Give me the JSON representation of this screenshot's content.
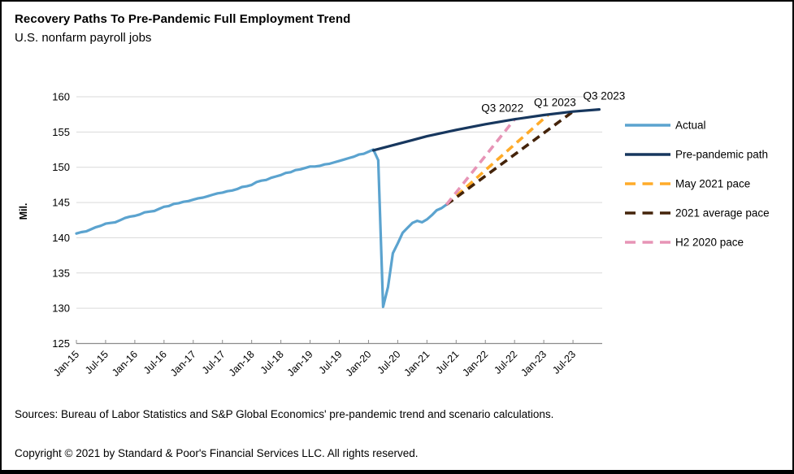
{
  "page": {
    "title": "Recovery Paths To Pre-Pandemic Full Employment Trend",
    "subtitle": "U.S. nonfarm payroll jobs"
  },
  "footer": {
    "sources": "Sources: Bureau of Labor Statistics and S&P Global Economics' pre-pandemic trend and scenario calculations.",
    "copyright": "Copyright © 2021 by Standard & Poor's Financial Services LLC. All rights reserved."
  },
  "chart_data": {
    "type": "line",
    "title": "Recovery Paths To Pre-Pandemic Full Employment Trend",
    "subtitle": "U.S. nonfarm payroll jobs",
    "ylabel": "Mil.",
    "ylim": [
      125,
      160
    ],
    "yticks": [
      125,
      130,
      135,
      140,
      145,
      150,
      155,
      160
    ],
    "xticklabels": [
      "Jan-15",
      "Jul-15",
      "Jan-16",
      "Jul-16",
      "Jan-17",
      "Jul-17",
      "Jan-18",
      "Jul-18",
      "Jan-19",
      "Jul-19",
      "Jan-20",
      "Jul-20",
      "Jan-21",
      "Jul-21",
      "Jan-22",
      "Jul-22",
      "Jan-23",
      "Jul-23"
    ],
    "x_months_domain": [
      0,
      108
    ],
    "x_month_zero": "Jan-15",
    "grid": "horizontal",
    "legend_position": "right",
    "axis_color": "#8C8C8C",
    "grid_color": "#D9D9D9",
    "series": [
      {
        "name": "Actual",
        "color": "#5BA3CF",
        "style": "solid",
        "start_month": 0,
        "monthly_values": [
          140.6,
          140.8,
          140.9,
          141.2,
          141.5,
          141.7,
          142.0,
          142.1,
          142.2,
          142.5,
          142.8,
          143.0,
          143.1,
          143.3,
          143.6,
          143.7,
          143.8,
          144.1,
          144.4,
          144.5,
          144.8,
          144.9,
          145.1,
          145.2,
          145.4,
          145.6,
          145.7,
          145.9,
          146.1,
          146.3,
          146.4,
          146.6,
          146.7,
          146.9,
          147.2,
          147.3,
          147.5,
          147.9,
          148.1,
          148.2,
          148.5,
          148.7,
          148.9,
          149.2,
          149.3,
          149.6,
          149.7,
          149.9,
          150.1,
          150.1,
          150.2,
          150.4,
          150.5,
          150.7,
          150.9,
          151.1,
          151.3,
          151.5,
          151.8,
          151.9,
          152.2,
          152.5,
          151.0,
          130.2,
          133.0,
          137.8,
          139.2,
          140.7,
          141.4,
          142.1,
          142.4,
          142.2,
          142.6,
          143.2,
          143.9,
          144.2,
          144.7
        ]
      },
      {
        "name": "Pre-pandemic path",
        "color": "#17375E",
        "style": "solid",
        "points": [
          [
            61,
            152.4
          ],
          [
            66,
            153.3
          ],
          [
            72,
            154.4
          ],
          [
            78,
            155.3
          ],
          [
            84,
            156.1
          ],
          [
            90,
            156.8
          ],
          [
            96,
            157.4
          ],
          [
            102,
            157.9
          ],
          [
            107.4,
            158.2
          ]
        ]
      },
      {
        "name": "May 2021 pace",
        "color": "#FFAB29",
        "style": "dashed",
        "points": [
          [
            76,
            144.7
          ],
          [
            97,
            157.5
          ]
        ]
      },
      {
        "name": "2021 average pace",
        "color": "#44230A",
        "style": "dashed",
        "points": [
          [
            76,
            144.7
          ],
          [
            102,
            157.9
          ]
        ]
      },
      {
        "name": "H2 2020 pace",
        "color": "#E794B6",
        "style": "dashed",
        "points": [
          [
            76,
            144.7
          ],
          [
            90,
            156.8
          ]
        ]
      }
    ],
    "annotations": [
      {
        "label": "Q3 2022",
        "month": 87.5,
        "value": 158.4
      },
      {
        "label": "Q1 2023",
        "month": 98.3,
        "value": 159.2
      },
      {
        "label": "Q3 2023",
        "month": 108.4,
        "value": 160.1
      }
    ]
  }
}
